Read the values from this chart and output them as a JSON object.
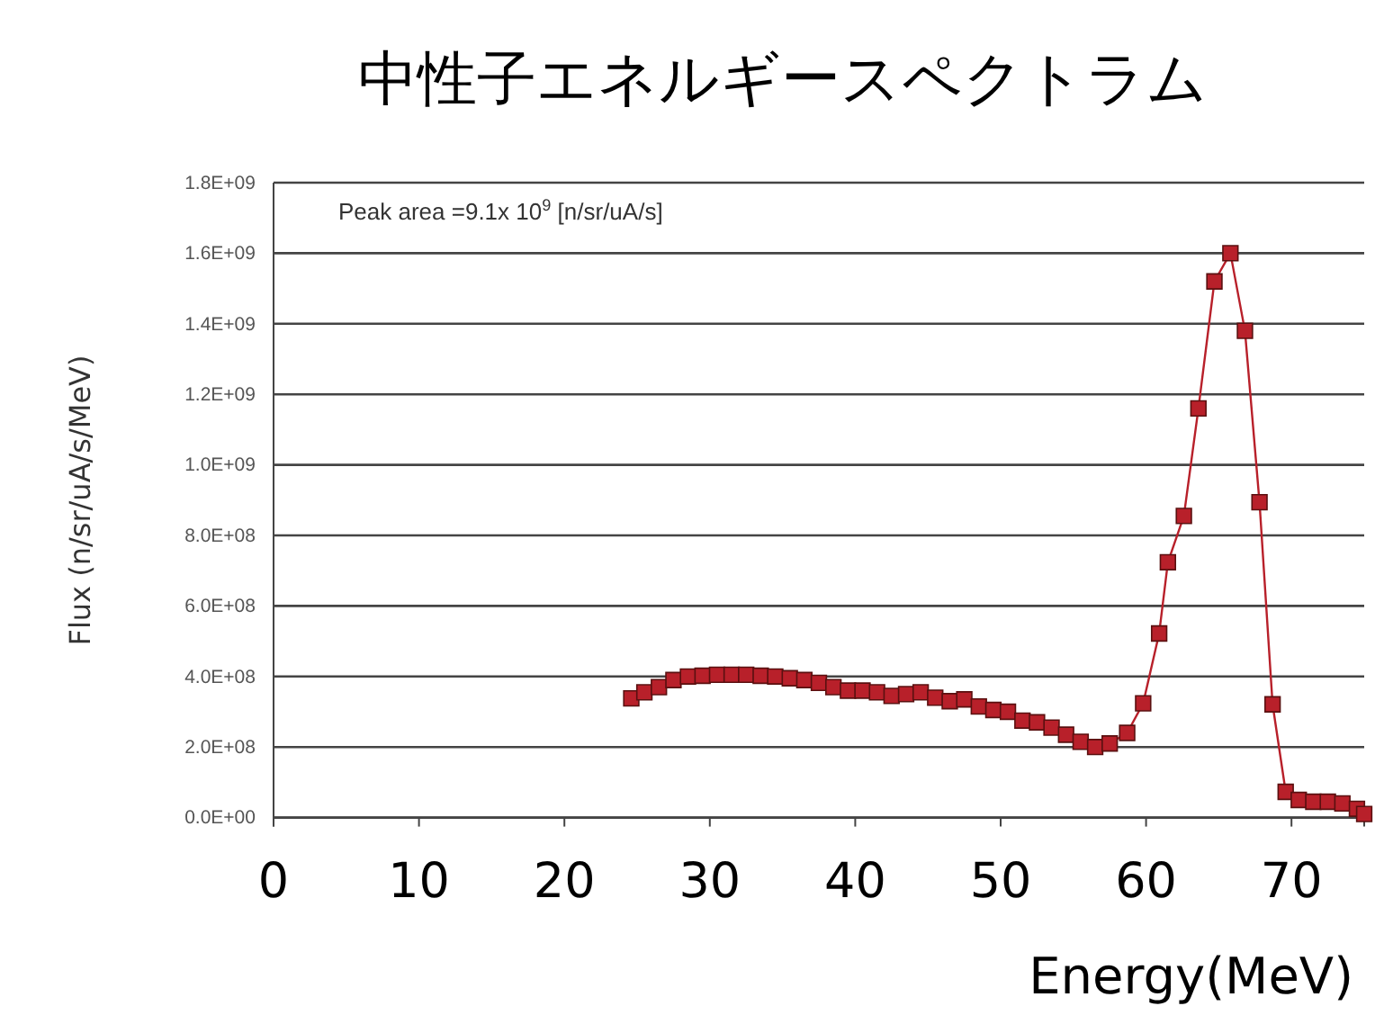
{
  "chart_data": {
    "type": "line",
    "title": "中性子エネルギースペクトラム",
    "xlabel": "Energy(MeV)",
    "ylabel": "Flux (n/sr/uA/s/MeV)",
    "annotations": [
      "Peak area =9.1x 10$^{9}$ [n/sr/uA/s]"
    ],
    "xlim": [
      0,
      75
    ],
    "xticks": [
      0,
      10,
      20,
      30,
      40,
      50,
      60,
      70
    ],
    "ylim": [
      0,
      1800000000
    ],
    "yticks": [
      {
        "value": 0,
        "label": "0.0E+00"
      },
      {
        "value": 200000000,
        "label": "2.0E+08"
      },
      {
        "value": 400000000,
        "label": "4.0E+08"
      },
      {
        "value": 600000000,
        "label": "6.0E+08"
      },
      {
        "value": 800000000,
        "label": "8.0E+08"
      },
      {
        "value": 1000000000,
        "label": "1.0E+09"
      },
      {
        "value": 1200000000,
        "label": "1.2E+09"
      },
      {
        "value": 1400000000,
        "label": "1.4E+09"
      },
      {
        "value": 1600000000,
        "label": "1.6E+09"
      },
      {
        "value": 1800000000,
        "label": "1.8E+09"
      }
    ],
    "grid": "y",
    "marker": "square",
    "line_style": "solid",
    "series": [
      {
        "color": "#b8202a",
        "x": [
          24.6,
          25.5,
          26.5,
          27.5,
          28.5,
          29.5,
          30.5,
          31.5,
          32.5,
          33.5,
          34.5,
          35.5,
          36.5,
          37.5,
          38.5,
          39.5,
          40.5,
          41.5,
          42.5,
          43.5,
          44.5,
          45.5,
          46.5,
          47.5,
          48.5,
          49.5,
          50.5,
          51.5,
          52.5,
          53.5,
          54.5,
          55.5,
          56.5,
          57.5,
          58.7,
          59.8,
          60.9,
          61.5,
          62.6,
          63.6,
          64.7,
          65.8,
          66.8,
          67.8,
          68.7,
          69.6,
          70.5,
          71.5,
          72.5,
          73.5,
          74.5,
          75
        ],
        "values": [
          338000000,
          355000000,
          370000000,
          390000000,
          400000000,
          402000000,
          405000000,
          405000000,
          405000000,
          402000000,
          400000000,
          395000000,
          390000000,
          382000000,
          370000000,
          360000000,
          360000000,
          355000000,
          345000000,
          350000000,
          355000000,
          340000000,
          330000000,
          335000000,
          315000000,
          305000000,
          300000000,
          275000000,
          270000000,
          255000000,
          235000000,
          215000000,
          200000000,
          210000000,
          240000000,
          324000000,
          522000000,
          724000000,
          855000000,
          1160000000,
          1520000000,
          1600000000,
          1380000000,
          894000000,
          321000000,
          73000000,
          50000000,
          45000000,
          45000000,
          40000000,
          25000000,
          10000000
        ]
      }
    ]
  }
}
